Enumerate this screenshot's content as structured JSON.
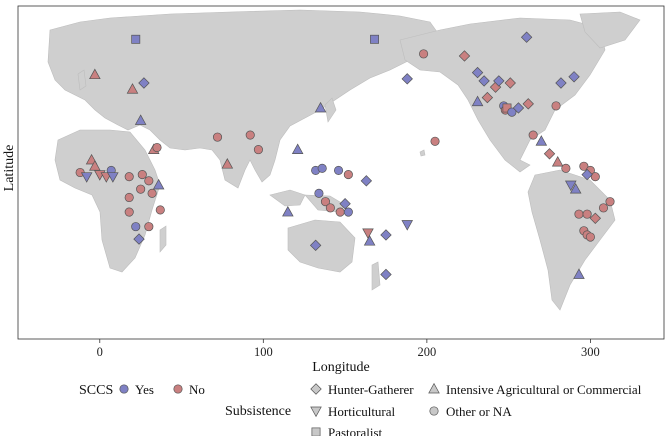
{
  "chart_data": {
    "type": "scatter",
    "title": "",
    "xlabel": "Longitude",
    "ylabel": "Latitude",
    "xlim": [
      -50,
      345
    ],
    "ylim": [
      -75,
      85
    ],
    "x_ticks": [
      0,
      100,
      200,
      300
    ],
    "grid": false,
    "legend": {
      "position": "bottom",
      "color_title": "SCCS",
      "color_entries": [
        {
          "label": "Yes",
          "color": "#7f81c4"
        },
        {
          "label": "No",
          "color": "#c98080"
        }
      ],
      "shape_title": "Subsistence",
      "shape_entries": [
        {
          "label": "Hunter-Gatherer",
          "shape": "diamond"
        },
        {
          "label": "Intensive Agricultural or Commercial",
          "shape": "triangle-up"
        },
        {
          "label": "Horticultural",
          "shape": "triangle-down"
        },
        {
          "label": "Other or NA",
          "shape": "circle"
        },
        {
          "label": "Pastoralist",
          "shape": "square"
        }
      ]
    },
    "points": [
      {
        "x": 22,
        "y": 69,
        "sccs": "Yes",
        "subsistence": "Pastoralist"
      },
      {
        "x": 168,
        "y": 69,
        "sccs": "Yes",
        "subsistence": "Pastoralist"
      },
      {
        "x": -3,
        "y": 52,
        "sccs": "No",
        "subsistence": "Intensive Agricultural or Commercial"
      },
      {
        "x": 20,
        "y": 45,
        "sccs": "No",
        "subsistence": "Intensive Agricultural or Commercial"
      },
      {
        "x": 27,
        "y": 48,
        "sccs": "Yes",
        "subsistence": "Hunter-Gatherer"
      },
      {
        "x": 25,
        "y": 30,
        "sccs": "Yes",
        "subsistence": "Intensive Agricultural or Commercial"
      },
      {
        "x": 33,
        "y": 16,
        "sccs": "No",
        "subsistence": "Intensive Agricultural or Commercial"
      },
      {
        "x": 35,
        "y": 17,
        "sccs": "No",
        "subsistence": "Other or NA"
      },
      {
        "x": -5,
        "y": 11,
        "sccs": "No",
        "subsistence": "Intensive Agricultural or Commercial"
      },
      {
        "x": -3,
        "y": 8,
        "sccs": "No",
        "subsistence": "Intensive Agricultural or Commercial"
      },
      {
        "x": -12,
        "y": 5,
        "sccs": "No",
        "subsistence": "Other or NA"
      },
      {
        "x": -8,
        "y": 3,
        "sccs": "Yes",
        "subsistence": "Horticultural"
      },
      {
        "x": 0,
        "y": 4,
        "sccs": "No",
        "subsistence": "Horticultural"
      },
      {
        "x": 4,
        "y": 3,
        "sccs": "No",
        "subsistence": "Horticultural"
      },
      {
        "x": 7,
        "y": 6,
        "sccs": "Yes",
        "subsistence": "Other or NA"
      },
      {
        "x": 8,
        "y": 3,
        "sccs": "Yes",
        "subsistence": "Horticultural"
      },
      {
        "x": 18,
        "y": 3,
        "sccs": "No",
        "subsistence": "Other or NA"
      },
      {
        "x": 26,
        "y": 4,
        "sccs": "No",
        "subsistence": "Other or NA"
      },
      {
        "x": 30,
        "y": 1,
        "sccs": "No",
        "subsistence": "Other or NA"
      },
      {
        "x": 25,
        "y": -3,
        "sccs": "No",
        "subsistence": "Other or NA"
      },
      {
        "x": 36,
        "y": -1,
        "sccs": "Yes",
        "subsistence": "Intensive Agricultural or Commercial"
      },
      {
        "x": 32,
        "y": -5,
        "sccs": "No",
        "subsistence": "Other or NA"
      },
      {
        "x": 18,
        "y": -7,
        "sccs": "No",
        "subsistence": "Other or NA"
      },
      {
        "x": 37,
        "y": -13,
        "sccs": "No",
        "subsistence": "Other or NA"
      },
      {
        "x": 18,
        "y": -14,
        "sccs": "No",
        "subsistence": "Other or NA"
      },
      {
        "x": 22,
        "y": -21,
        "sccs": "Yes",
        "subsistence": "Other or NA"
      },
      {
        "x": 30,
        "y": -21,
        "sccs": "No",
        "subsistence": "Other or NA"
      },
      {
        "x": 24,
        "y": -27,
        "sccs": "Yes",
        "subsistence": "Diamond"
      },
      {
        "x": 72,
        "y": 22,
        "sccs": "No",
        "subsistence": "Other or NA"
      },
      {
        "x": 92,
        "y": 23,
        "sccs": "No",
        "subsistence": "Other or NA"
      },
      {
        "x": 97,
        "y": 16,
        "sccs": "No",
        "subsistence": "Other or NA"
      },
      {
        "x": 78,
        "y": 9,
        "sccs": "No",
        "subsistence": "Intensive Agricultural or Commercial"
      },
      {
        "x": 135,
        "y": 36,
        "sccs": "Yes",
        "subsistence": "Intensive Agricultural or Commercial"
      },
      {
        "x": 121,
        "y": 16,
        "sccs": "Yes",
        "subsistence": "Intensive Agricultural or Commercial"
      },
      {
        "x": 115,
        "y": -14,
        "sccs": "Yes",
        "subsistence": "Intensive Agricultural or Commercial"
      },
      {
        "x": 132,
        "y": 6,
        "sccs": "Yes",
        "subsistence": "Other or NA"
      },
      {
        "x": 136,
        "y": 7,
        "sccs": "Yes",
        "subsistence": "Other or NA"
      },
      {
        "x": 146,
        "y": 6,
        "sccs": "Yes",
        "subsistence": "Other or NA"
      },
      {
        "x": 152,
        "y": 4,
        "sccs": "No",
        "subsistence": "Other or NA"
      },
      {
        "x": 134,
        "y": -5,
        "sccs": "Yes",
        "subsistence": "Other or NA"
      },
      {
        "x": 138,
        "y": -9,
        "sccs": "No",
        "subsistence": "Other or NA"
      },
      {
        "x": 141,
        "y": -12,
        "sccs": "No",
        "subsistence": "Other or NA"
      },
      {
        "x": 147,
        "y": -14,
        "sccs": "No",
        "subsistence": "Other or NA"
      },
      {
        "x": 152,
        "y": -14,
        "sccs": "Yes",
        "subsistence": "Other or NA"
      },
      {
        "x": 150,
        "y": -10,
        "sccs": "Yes",
        "subsistence": "Hunter-Gatherer"
      },
      {
        "x": 163,
        "y": 1,
        "sccs": "Yes",
        "subsistence": "Hunter-Gatherer"
      },
      {
        "x": 164,
        "y": -24,
        "sccs": "No",
        "subsistence": "Horticultural"
      },
      {
        "x": 165,
        "y": -28,
        "sccs": "Yes",
        "subsistence": "Intensive Agricultural or Commercial"
      },
      {
        "x": 175,
        "y": -25,
        "sccs": "Yes",
        "subsistence": "Hunter-Gatherer"
      },
      {
        "x": 188,
        "y": -20,
        "sccs": "Yes",
        "subsistence": "Horticultural"
      },
      {
        "x": 132,
        "y": -30,
        "sccs": "Yes",
        "subsistence": "Hunter-Gatherer"
      },
      {
        "x": 175,
        "y": -44,
        "sccs": "Yes",
        "subsistence": "Hunter-Gatherer"
      },
      {
        "x": 188,
        "y": 50,
        "sccs": "Yes",
        "subsistence": "Hunter-Gatherer"
      },
      {
        "x": 198,
        "y": 62,
        "sccs": "No",
        "subsistence": "Other or NA"
      },
      {
        "x": 205,
        "y": 20,
        "sccs": "No",
        "subsistence": "Other or NA"
      },
      {
        "x": 223,
        "y": 61,
        "sccs": "No",
        "subsistence": "Hunter-Gatherer"
      },
      {
        "x": 231,
        "y": 53,
        "sccs": "Yes",
        "subsistence": "Hunter-Gatherer"
      },
      {
        "x": 235,
        "y": 49,
        "sccs": "Yes",
        "subsistence": "Hunter-Gatherer"
      },
      {
        "x": 231,
        "y": 39,
        "sccs": "Yes",
        "subsistence": "Intensive Agricultural or Commercial"
      },
      {
        "x": 237,
        "y": 41,
        "sccs": "No",
        "subsistence": "Hunter-Gatherer"
      },
      {
        "x": 242,
        "y": 46,
        "sccs": "No",
        "subsistence": "Hunter-Gatherer"
      },
      {
        "x": 244,
        "y": 49,
        "sccs": "Yes",
        "subsistence": "Hunter-Gatherer"
      },
      {
        "x": 251,
        "y": 48,
        "sccs": "No",
        "subsistence": "Hunter-Gatherer"
      },
      {
        "x": 247,
        "y": 37,
        "sccs": "Yes",
        "subsistence": "Other or NA"
      },
      {
        "x": 248,
        "y": 35,
        "sccs": "No",
        "subsistence": "Other or NA"
      },
      {
        "x": 249,
        "y": 36,
        "sccs": "No",
        "subsistence": "Pastoralist"
      },
      {
        "x": 252,
        "y": 34,
        "sccs": "Yes",
        "subsistence": "Other or NA"
      },
      {
        "x": 256,
        "y": 36,
        "sccs": "Yes",
        "subsistence": "Hunter-Gatherer"
      },
      {
        "x": 261,
        "y": 70,
        "sccs": "Yes",
        "subsistence": "Hunter-Gatherer"
      },
      {
        "x": 262,
        "y": 38,
        "sccs": "No",
        "subsistence": "Hunter-Gatherer"
      },
      {
        "x": 279,
        "y": 37,
        "sccs": "No",
        "subsistence": "Other or NA"
      },
      {
        "x": 282,
        "y": 48,
        "sccs": "Yes",
        "subsistence": "Hunter-Gatherer"
      },
      {
        "x": 290,
        "y": 51,
        "sccs": "Yes",
        "subsistence": "Hunter-Gatherer"
      },
      {
        "x": 265,
        "y": 23,
        "sccs": "No",
        "subsistence": "Other or NA"
      },
      {
        "x": 270,
        "y": 20,
        "sccs": "Yes",
        "subsistence": "Intensive Agricultural or Commercial"
      },
      {
        "x": 275,
        "y": 14,
        "sccs": "No",
        "subsistence": "Hunter-Gatherer"
      },
      {
        "x": 280,
        "y": 10,
        "sccs": "No",
        "subsistence": "Intensive Agricultural or Commercial"
      },
      {
        "x": 285,
        "y": 7,
        "sccs": "No",
        "subsistence": "Other or NA"
      },
      {
        "x": 296,
        "y": 8,
        "sccs": "No",
        "subsistence": "Other or NA"
      },
      {
        "x": 300,
        "y": 6,
        "sccs": "No",
        "subsistence": "Other or NA"
      },
      {
        "x": 303,
        "y": 3,
        "sccs": "No",
        "subsistence": "Other or NA"
      },
      {
        "x": 298,
        "y": 4,
        "sccs": "Yes",
        "subsistence": "Hunter-Gatherer"
      },
      {
        "x": 288,
        "y": -1,
        "sccs": "Yes",
        "subsistence": "Horticultural"
      },
      {
        "x": 291,
        "y": -3,
        "sccs": "Yes",
        "subsistence": "Intensive Agricultural or Commercial"
      },
      {
        "x": 293,
        "y": -15,
        "sccs": "No",
        "subsistence": "Other or NA"
      },
      {
        "x": 298,
        "y": -15,
        "sccs": "No",
        "subsistence": "Other or NA"
      },
      {
        "x": 308,
        "y": -12,
        "sccs": "No",
        "subsistence": "Other or NA"
      },
      {
        "x": 312,
        "y": -9,
        "sccs": "No",
        "subsistence": "Other or NA"
      },
      {
        "x": 303,
        "y": -17,
        "sccs": "No",
        "subsistence": "Hunter-Gatherer"
      },
      {
        "x": 296,
        "y": -23,
        "sccs": "No",
        "subsistence": "Other or NA"
      },
      {
        "x": 298,
        "y": -25,
        "sccs": "No",
        "subsistence": "Other or NA"
      },
      {
        "x": 300,
        "y": -26,
        "sccs": "No",
        "subsistence": "Other or NA"
      },
      {
        "x": 293,
        "y": -44,
        "sccs": "Yes",
        "subsistence": "Intensive Agricultural or Commercial"
      }
    ]
  }
}
